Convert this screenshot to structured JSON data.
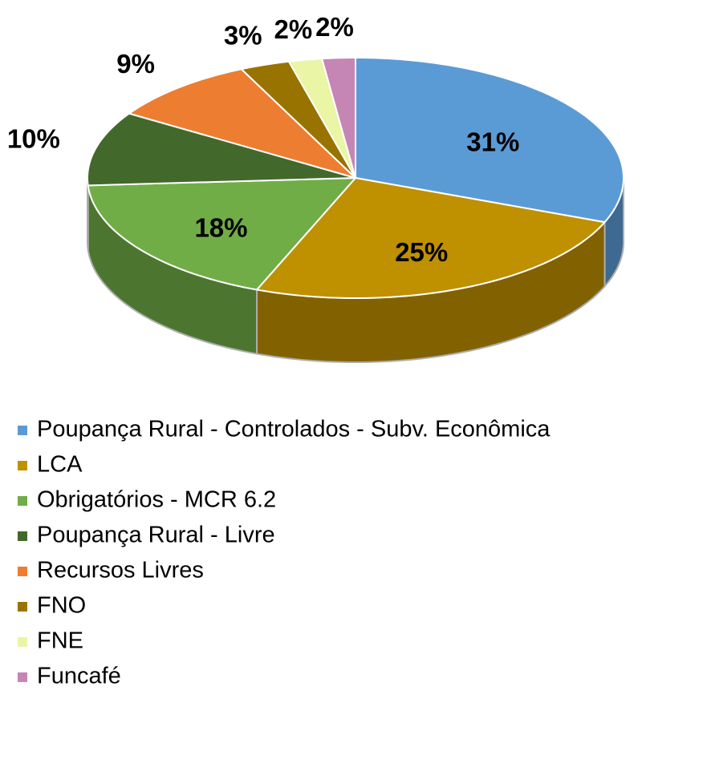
{
  "chart_data": {
    "type": "pie",
    "categories": [
      "Poupança Rural - Controlados - Subv. Econômica",
      "LCA",
      "Obrigatórios - MCR 6.2",
      "Poupança Rural - Livre",
      "Recursos Livres",
      "FNO",
      "FNE",
      "Funcafé"
    ],
    "values": [
      31,
      25,
      18,
      10,
      9,
      3,
      2,
      2
    ],
    "value_labels": [
      "31%",
      "25%",
      "18%",
      "10%",
      "9%",
      "3%",
      "2%",
      "2%"
    ],
    "colors": [
      "#5b9bd5",
      "#bf9000",
      "#70ad47",
      "#43682b",
      "#ed7d31",
      "#997300",
      "#eaf5a5",
      "#c585b5"
    ],
    "legend": "bottom"
  }
}
